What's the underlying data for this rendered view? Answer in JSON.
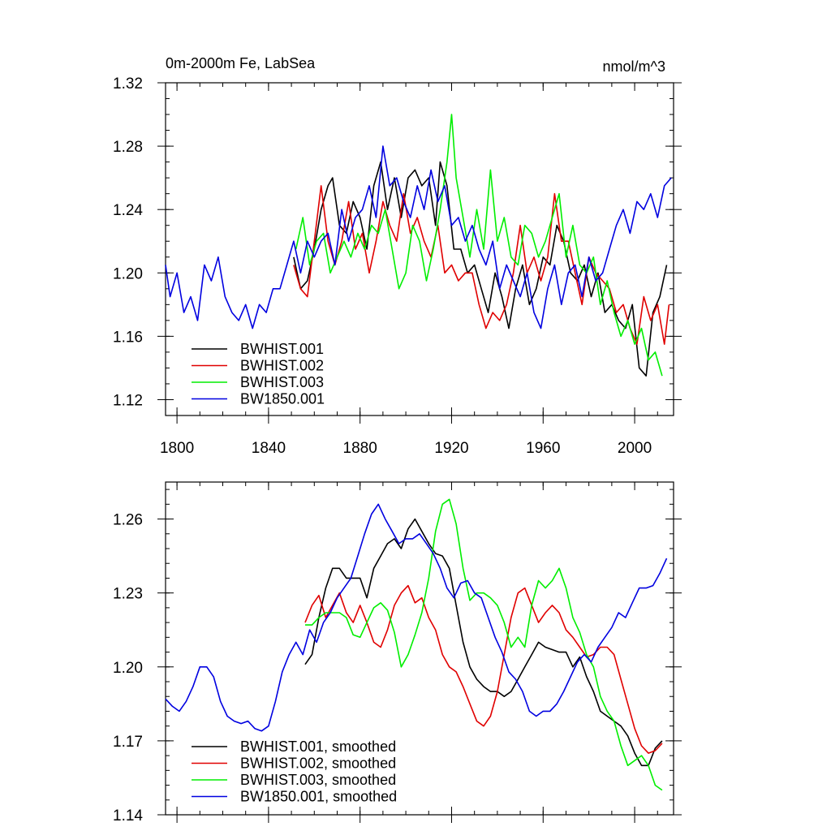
{
  "chart_data": [
    {
      "type": "line",
      "title": "0m-2000m Fe, LabSea",
      "units": "nmol/m^3",
      "xlim": [
        1795,
        2017
      ],
      "ylim": [
        1.11,
        1.32
      ],
      "xticks": [
        1800,
        1840,
        1880,
        1920,
        1960,
        2000
      ],
      "xtick_labels": [
        "1800",
        "1840",
        "1880",
        "1920",
        "1960",
        "2000"
      ],
      "yticks": [
        1.12,
        1.16,
        1.2,
        1.24,
        1.28,
        1.32
      ],
      "ytick_labels": [
        "1.12",
        "1.16",
        "1.20",
        "1.24",
        "1.28",
        "1.32"
      ],
      "legend": [
        "BWHIST.001",
        "BWHIST.002",
        "BWHIST.003",
        "BW1850.001"
      ],
      "series": [
        {
          "name": "BWHIST.001",
          "color": "#000000",
          "x": [
            1851,
            1854,
            1857,
            1860,
            1863,
            1866,
            1868,
            1871,
            1874,
            1877,
            1880,
            1883,
            1886,
            1889,
            1892,
            1895,
            1898,
            1901,
            1904,
            1907,
            1910,
            1913,
            1915,
            1918,
            1921,
            1924,
            1927,
            1930,
            1933,
            1936,
            1939,
            1942,
            1945,
            1948,
            1951,
            1954,
            1957,
            1960,
            1963,
            1966,
            1969,
            1972,
            1975,
            1978,
            1981,
            1984,
            1987,
            1990,
            1993,
            1996,
            1999,
            2002,
            2005,
            2008,
            2011,
            2014
          ],
          "y": [
            1.21,
            1.19,
            1.195,
            1.215,
            1.24,
            1.255,
            1.26,
            1.23,
            1.225,
            1.245,
            1.235,
            1.215,
            1.255,
            1.27,
            1.24,
            1.26,
            1.235,
            1.26,
            1.265,
            1.255,
            1.26,
            1.23,
            1.27,
            1.255,
            1.215,
            1.215,
            1.2,
            1.205,
            1.19,
            1.175,
            1.2,
            1.185,
            1.165,
            1.19,
            1.205,
            1.18,
            1.19,
            1.21,
            1.205,
            1.23,
            1.22,
            1.2,
            1.195,
            1.205,
            1.185,
            1.2,
            1.175,
            1.18,
            1.17,
            1.165,
            1.18,
            1.14,
            1.135,
            1.175,
            1.185,
            1.205
          ]
        },
        {
          "name": "BWHIST.002",
          "color": "#e00000",
          "x": [
            1851,
            1854,
            1857,
            1860,
            1863,
            1866,
            1869,
            1872,
            1875,
            1878,
            1881,
            1884,
            1887,
            1890,
            1893,
            1896,
            1899,
            1902,
            1905,
            1908,
            1911,
            1914,
            1917,
            1920,
            1923,
            1926,
            1929,
            1932,
            1935,
            1938,
            1941,
            1944,
            1947,
            1950,
            1953,
            1956,
            1959,
            1962,
            1965,
            1968,
            1971,
            1974,
            1977,
            1980,
            1983,
            1986,
            1989,
            1992,
            1995,
            1998,
            2001,
            2004,
            2007,
            2010,
            2013,
            2015
          ],
          "y": [
            1.205,
            1.19,
            1.185,
            1.22,
            1.255,
            1.22,
            1.205,
            1.22,
            1.245,
            1.215,
            1.225,
            1.2,
            1.22,
            1.245,
            1.23,
            1.22,
            1.25,
            1.225,
            1.235,
            1.22,
            1.21,
            1.23,
            1.2,
            1.205,
            1.195,
            1.2,
            1.2,
            1.18,
            1.165,
            1.175,
            1.17,
            1.18,
            1.2,
            1.23,
            1.2,
            1.21,
            1.195,
            1.21,
            1.25,
            1.22,
            1.22,
            1.2,
            1.18,
            1.21,
            1.2,
            1.195,
            1.19,
            1.175,
            1.18,
            1.165,
            1.155,
            1.185,
            1.17,
            1.18,
            1.155,
            1.18
          ]
        },
        {
          "name": "BWHIST.003",
          "color": "#00ee00",
          "x": [
            1852,
            1855,
            1858,
            1861,
            1864,
            1867,
            1870,
            1873,
            1876,
            1879,
            1882,
            1885,
            1888,
            1891,
            1894,
            1897,
            1900,
            1903,
            1906,
            1909,
            1912,
            1915,
            1918,
            1920,
            1922,
            1925,
            1928,
            1931,
            1934,
            1937,
            1940,
            1943,
            1946,
            1949,
            1952,
            1955,
            1958,
            1961,
            1964,
            1967,
            1970,
            1973,
            1976,
            1979,
            1982,
            1985,
            1988,
            1991,
            1994,
            1997,
            2000,
            2003,
            2006,
            2009,
            2012
          ],
          "y": [
            1.215,
            1.235,
            1.205,
            1.22,
            1.225,
            1.2,
            1.21,
            1.22,
            1.21,
            1.225,
            1.215,
            1.23,
            1.225,
            1.24,
            1.215,
            1.19,
            1.2,
            1.23,
            1.22,
            1.195,
            1.215,
            1.24,
            1.27,
            1.3,
            1.26,
            1.235,
            1.21,
            1.24,
            1.215,
            1.265,
            1.22,
            1.235,
            1.21,
            1.205,
            1.23,
            1.225,
            1.21,
            1.22,
            1.235,
            1.25,
            1.21,
            1.23,
            1.205,
            1.2,
            1.21,
            1.18,
            1.195,
            1.175,
            1.16,
            1.17,
            1.155,
            1.165,
            1.145,
            1.15,
            1.135
          ]
        },
        {
          "name": "BW1850.001",
          "color": "#0000e0",
          "x": [
            1795,
            1797,
            1800,
            1803,
            1806,
            1809,
            1812,
            1815,
            1818,
            1821,
            1824,
            1827,
            1830,
            1833,
            1836,
            1839,
            1842,
            1845,
            1848,
            1851,
            1854,
            1857,
            1860,
            1863,
            1866,
            1869,
            1872,
            1875,
            1878,
            1881,
            1884,
            1887,
            1890,
            1893,
            1896,
            1899,
            1902,
            1905,
            1908,
            1911,
            1914,
            1917,
            1920,
            1923,
            1926,
            1929,
            1932,
            1935,
            1938,
            1941,
            1944,
            1947,
            1950,
            1953,
            1956,
            1959,
            1962,
            1965,
            1968,
            1971,
            1974,
            1977,
            1980,
            1983,
            1986,
            1989,
            1992,
            1995,
            1998,
            2001,
            2004,
            2007,
            2010,
            2013,
            2016
          ],
          "y": [
            1.205,
            1.185,
            1.2,
            1.175,
            1.185,
            1.17,
            1.205,
            1.195,
            1.21,
            1.185,
            1.175,
            1.17,
            1.18,
            1.165,
            1.18,
            1.175,
            1.19,
            1.19,
            1.205,
            1.22,
            1.2,
            1.22,
            1.21,
            1.22,
            1.225,
            1.205,
            1.24,
            1.22,
            1.235,
            1.24,
            1.255,
            1.235,
            1.28,
            1.255,
            1.26,
            1.245,
            1.235,
            1.255,
            1.24,
            1.265,
            1.245,
            1.255,
            1.23,
            1.235,
            1.22,
            1.23,
            1.215,
            1.205,
            1.22,
            1.19,
            1.205,
            1.195,
            1.185,
            1.2,
            1.175,
            1.165,
            1.19,
            1.205,
            1.18,
            1.2,
            1.205,
            1.185,
            1.21,
            1.195,
            1.2,
            1.215,
            1.23,
            1.24,
            1.225,
            1.245,
            1.24,
            1.25,
            1.235,
            1.255,
            1.26
          ]
        }
      ]
    },
    {
      "type": "line",
      "xlim": [
        1795,
        2017
      ],
      "ylim": [
        1.14,
        1.275
      ],
      "xticks": [
        1800,
        1840,
        1880,
        1920,
        1960,
        2000
      ],
      "yticks": [
        1.14,
        1.17,
        1.2,
        1.23,
        1.26
      ],
      "ytick_labels": [
        "1.14",
        "1.17",
        "1.20",
        "1.23",
        "1.26"
      ],
      "legend": [
        "BWHIST.001, smoothed",
        "BWHIST.002, smoothed",
        "BWHIST.003, smoothed",
        "BW1850.001, smoothed"
      ],
      "series": [
        {
          "name": "BWHIST.001, smoothed",
          "color": "#000000",
          "x": [
            1856,
            1859,
            1862,
            1865,
            1868,
            1871,
            1874,
            1877,
            1880,
            1883,
            1886,
            1889,
            1892,
            1895,
            1898,
            1901,
            1904,
            1907,
            1910,
            1913,
            1916,
            1919,
            1922,
            1925,
            1928,
            1931,
            1934,
            1937,
            1940,
            1943,
            1946,
            1949,
            1952,
            1955,
            1958,
            1961,
            1964,
            1967,
            1970,
            1973,
            1976,
            1979,
            1982,
            1985,
            1988,
            1991,
            1994,
            1997,
            2000,
            2003,
            2006,
            2009,
            2012
          ],
          "y": [
            1.201,
            1.205,
            1.22,
            1.232,
            1.24,
            1.24,
            1.236,
            1.236,
            1.236,
            1.228,
            1.24,
            1.245,
            1.25,
            1.252,
            1.248,
            1.256,
            1.26,
            1.255,
            1.25,
            1.246,
            1.245,
            1.24,
            1.225,
            1.21,
            1.2,
            1.195,
            1.192,
            1.19,
            1.19,
            1.188,
            1.19,
            1.195,
            1.2,
            1.205,
            1.21,
            1.208,
            1.207,
            1.206,
            1.206,
            1.2,
            1.204,
            1.196,
            1.19,
            1.182,
            1.18,
            1.178,
            1.176,
            1.172,
            1.165,
            1.16,
            1.16,
            1.167,
            1.17
          ]
        },
        {
          "name": "BWHIST.002, smoothed",
          "color": "#e00000",
          "x": [
            1856,
            1859,
            1862,
            1865,
            1868,
            1871,
            1874,
            1877,
            1880,
            1883,
            1886,
            1889,
            1892,
            1895,
            1898,
            1901,
            1904,
            1907,
            1910,
            1913,
            1916,
            1919,
            1922,
            1925,
            1928,
            1931,
            1934,
            1937,
            1940,
            1943,
            1946,
            1949,
            1952,
            1955,
            1958,
            1961,
            1964,
            1967,
            1970,
            1973,
            1976,
            1979,
            1982,
            1985,
            1988,
            1991,
            1994,
            1997,
            2000,
            2003,
            2006,
            2009,
            2012
          ],
          "y": [
            1.218,
            1.225,
            1.229,
            1.22,
            1.225,
            1.23,
            1.222,
            1.218,
            1.225,
            1.218,
            1.21,
            1.208,
            1.215,
            1.225,
            1.23,
            1.233,
            1.226,
            1.228,
            1.22,
            1.215,
            1.205,
            1.2,
            1.198,
            1.192,
            1.185,
            1.178,
            1.176,
            1.18,
            1.19,
            1.205,
            1.22,
            1.23,
            1.232,
            1.225,
            1.218,
            1.222,
            1.225,
            1.222,
            1.215,
            1.212,
            1.208,
            1.204,
            1.205,
            1.208,
            1.208,
            1.205,
            1.195,
            1.185,
            1.175,
            1.168,
            1.165,
            1.166,
            1.169
          ]
        },
        {
          "name": "BWHIST.003, smoothed",
          "color": "#00ee00",
          "x": [
            1856,
            1859,
            1862,
            1865,
            1868,
            1871,
            1874,
            1877,
            1880,
            1883,
            1886,
            1889,
            1892,
            1895,
            1898,
            1901,
            1904,
            1907,
            1910,
            1913,
            1916,
            1919,
            1922,
            1925,
            1928,
            1931,
            1934,
            1937,
            1940,
            1943,
            1946,
            1949,
            1952,
            1955,
            1958,
            1961,
            1964,
            1967,
            1970,
            1973,
            1976,
            1979,
            1982,
            1985,
            1988,
            1991,
            1994,
            1997,
            2000,
            2003,
            2006,
            2009,
            2012
          ],
          "y": [
            1.217,
            1.217,
            1.22,
            1.222,
            1.222,
            1.222,
            1.22,
            1.213,
            1.212,
            1.218,
            1.224,
            1.226,
            1.223,
            1.214,
            1.2,
            1.205,
            1.213,
            1.222,
            1.236,
            1.255,
            1.266,
            1.268,
            1.258,
            1.24,
            1.227,
            1.23,
            1.23,
            1.228,
            1.225,
            1.218,
            1.208,
            1.212,
            1.208,
            1.225,
            1.235,
            1.232,
            1.235,
            1.24,
            1.232,
            1.22,
            1.214,
            1.205,
            1.2,
            1.188,
            1.182,
            1.178,
            1.168,
            1.16,
            1.162,
            1.164,
            1.16,
            1.152,
            1.15
          ]
        },
        {
          "name": "BW1850.001, smoothed",
          "color": "#0000e0",
          "x": [
            1795,
            1798,
            1801,
            1804,
            1807,
            1810,
            1813,
            1816,
            1819,
            1822,
            1825,
            1828,
            1831,
            1834,
            1837,
            1840,
            1843,
            1846,
            1849,
            1852,
            1855,
            1858,
            1861,
            1864,
            1867,
            1870,
            1873,
            1876,
            1879,
            1882,
            1885,
            1888,
            1891,
            1894,
            1897,
            1900,
            1903,
            1906,
            1909,
            1912,
            1915,
            1918,
            1921,
            1924,
            1927,
            1930,
            1933,
            1936,
            1939,
            1942,
            1945,
            1948,
            1951,
            1954,
            1957,
            1960,
            1963,
            1966,
            1969,
            1972,
            1975,
            1978,
            1981,
            1984,
            1987,
            1990,
            1993,
            1996,
            1999,
            2002,
            2005,
            2008,
            2011,
            2014
          ],
          "y": [
            1.187,
            1.184,
            1.182,
            1.186,
            1.192,
            1.2,
            1.2,
            1.196,
            1.186,
            1.18,
            1.178,
            1.177,
            1.178,
            1.175,
            1.174,
            1.176,
            1.186,
            1.198,
            1.205,
            1.21,
            1.205,
            1.215,
            1.21,
            1.218,
            1.222,
            1.228,
            1.232,
            1.236,
            1.245,
            1.254,
            1.262,
            1.266,
            1.26,
            1.255,
            1.25,
            1.252,
            1.252,
            1.254,
            1.25,
            1.246,
            1.24,
            1.232,
            1.228,
            1.234,
            1.235,
            1.23,
            1.228,
            1.22,
            1.212,
            1.206,
            1.198,
            1.195,
            1.19,
            1.182,
            1.18,
            1.182,
            1.182,
            1.185,
            1.19,
            1.196,
            1.202,
            1.205,
            1.202,
            1.208,
            1.212,
            1.216,
            1.222,
            1.22,
            1.226,
            1.232,
            1.232,
            1.233,
            1.238,
            1.244
          ]
        }
      ]
    }
  ]
}
